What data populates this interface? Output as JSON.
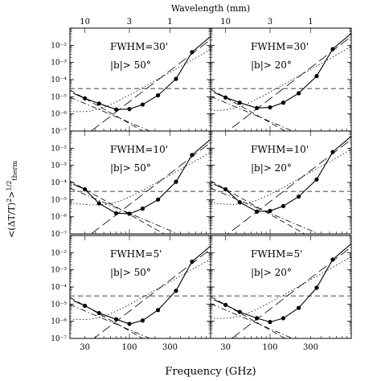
{
  "figure": {
    "top_axis_label": "Wavelength (mm)",
    "bottom_axis_label": "Frequency (GHz)",
    "y_axis_label_main": "<(ΔT/T)",
    "y_axis_label_sup": "2",
    "y_axis_label_close": ">",
    "y_axis_label_exp": "1/2",
    "y_axis_label_sub": "therm"
  },
  "chart_data": {
    "type": "line",
    "layout": "3x2 grid",
    "x_scale": "log",
    "y_scale": "log",
    "xlim": [
      20,
      900
    ],
    "ylim": [
      1e-07,
      0.1
    ],
    "x_ticks": [
      30,
      100,
      300
    ],
    "x_tick_labels": [
      "30",
      "100",
      "300"
    ],
    "wavelength_ticks_mm": [
      10,
      3,
      1
    ],
    "wavelength_tick_labels": [
      "10",
      "3",
      "1"
    ],
    "y_tick_labels": [
      "10⁻⁷",
      "10⁻⁶",
      "10⁻⁵",
      "10⁻⁴",
      "10⁻³",
      "10⁻²"
    ],
    "frequencies_ghz": [
      30,
      44,
      70,
      100,
      143,
      217,
      353,
      545
    ],
    "panels": [
      {
        "fwhm_label": "FWHM=30'",
        "lat_label": "|b|> 50°",
        "threshold": 3e-05,
        "total_at_markers": [
          8e-06,
          4e-06,
          1.8e-06,
          1.9e-06,
          3.5e-06,
          1.2e-05,
          0.00011,
          0.004
        ]
      },
      {
        "fwhm_label": "FWHM=30'",
        "lat_label": "|b|> 20°",
        "threshold": 3e-05,
        "total_at_markers": [
          9e-06,
          4.5e-06,
          2.2e-06,
          2.4e-06,
          4.5e-06,
          1.6e-05,
          0.00016,
          0.006
        ]
      },
      {
        "fwhm_label": "FWHM=10'",
        "lat_label": "|b|> 50°",
        "threshold": 3e-05,
        "total_at_markers": [
          4e-05,
          6e-06,
          1.6e-06,
          1.5e-06,
          3e-06,
          1e-05,
          0.00011,
          0.004
        ]
      },
      {
        "fwhm_label": "FWHM=10'",
        "lat_label": "|b|> 20°",
        "threshold": 3e-05,
        "total_at_markers": [
          4e-05,
          7e-06,
          2e-06,
          2.2e-06,
          4.2e-06,
          1.5e-05,
          0.00015,
          0.006
        ]
      },
      {
        "fwhm_label": "FWHM=5'",
        "lat_label": "|b|> 50°",
        "threshold": 3e-05,
        "total_at_markers": [
          8e-06,
          3e-06,
          1.3e-06,
          7e-07,
          1.1e-06,
          4.5e-06,
          6e-05,
          0.003
        ]
      },
      {
        "fwhm_label": "FWHM=5'",
        "lat_label": "|b|> 20°",
        "threshold": 3e-05,
        "total_at_markers": [
          9e-06,
          3.5e-06,
          1.5e-06,
          9e-07,
          1.5e-06,
          6e-06,
          9e-05,
          0.004
        ]
      }
    ]
  }
}
